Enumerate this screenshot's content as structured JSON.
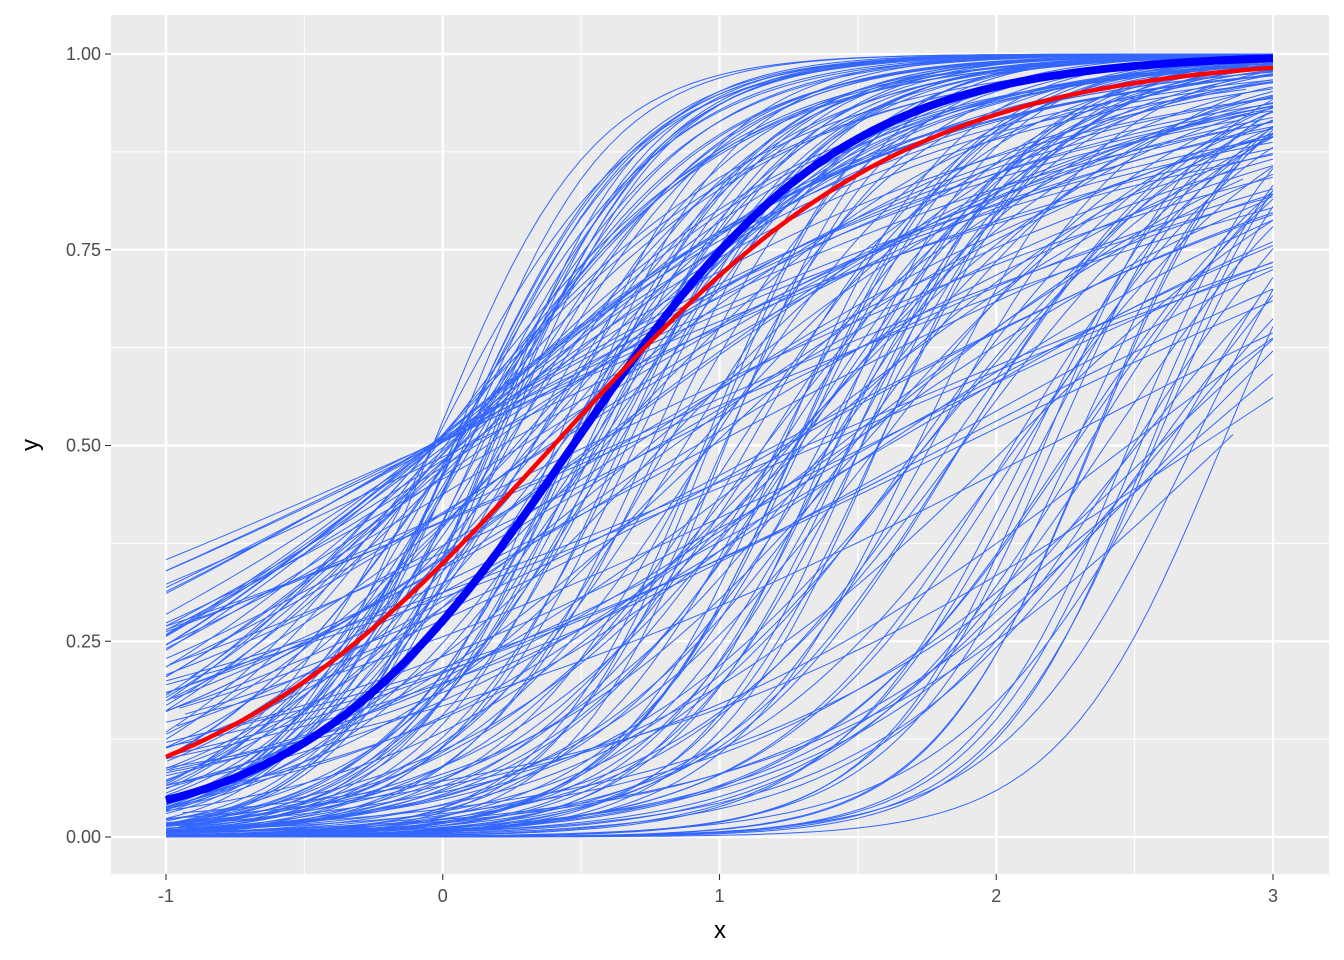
{
  "chart_data": {
    "type": "line",
    "xlabel": "x",
    "ylabel": "y",
    "xlim": [
      -1,
      3
    ],
    "ylim": [
      0,
      1
    ],
    "x_ticks": [
      "-1",
      "0",
      "1",
      "2",
      "3"
    ],
    "y_ticks": [
      "0.00",
      "0.25",
      "0.50",
      "0.75",
      "1.00"
    ],
    "grid": true,
    "background": "#ebebeb",
    "grid_color": "#ffffff",
    "posterior_draws": {
      "count": 200,
      "color": "#3366ff",
      "form": "logistic",
      "midpoint_range": [
        -0.05,
        2.9
      ],
      "slope_range": [
        0.6,
        3.6
      ],
      "seed": 7
    },
    "series": [
      {
        "role": "mean_fit",
        "color": "#0000ff",
        "midpoint": 0.47,
        "slope": 2.05
      },
      {
        "role": "average_curve",
        "color": "#ff0000",
        "midpoint": 0.4,
        "slope": 1.55
      }
    ]
  }
}
